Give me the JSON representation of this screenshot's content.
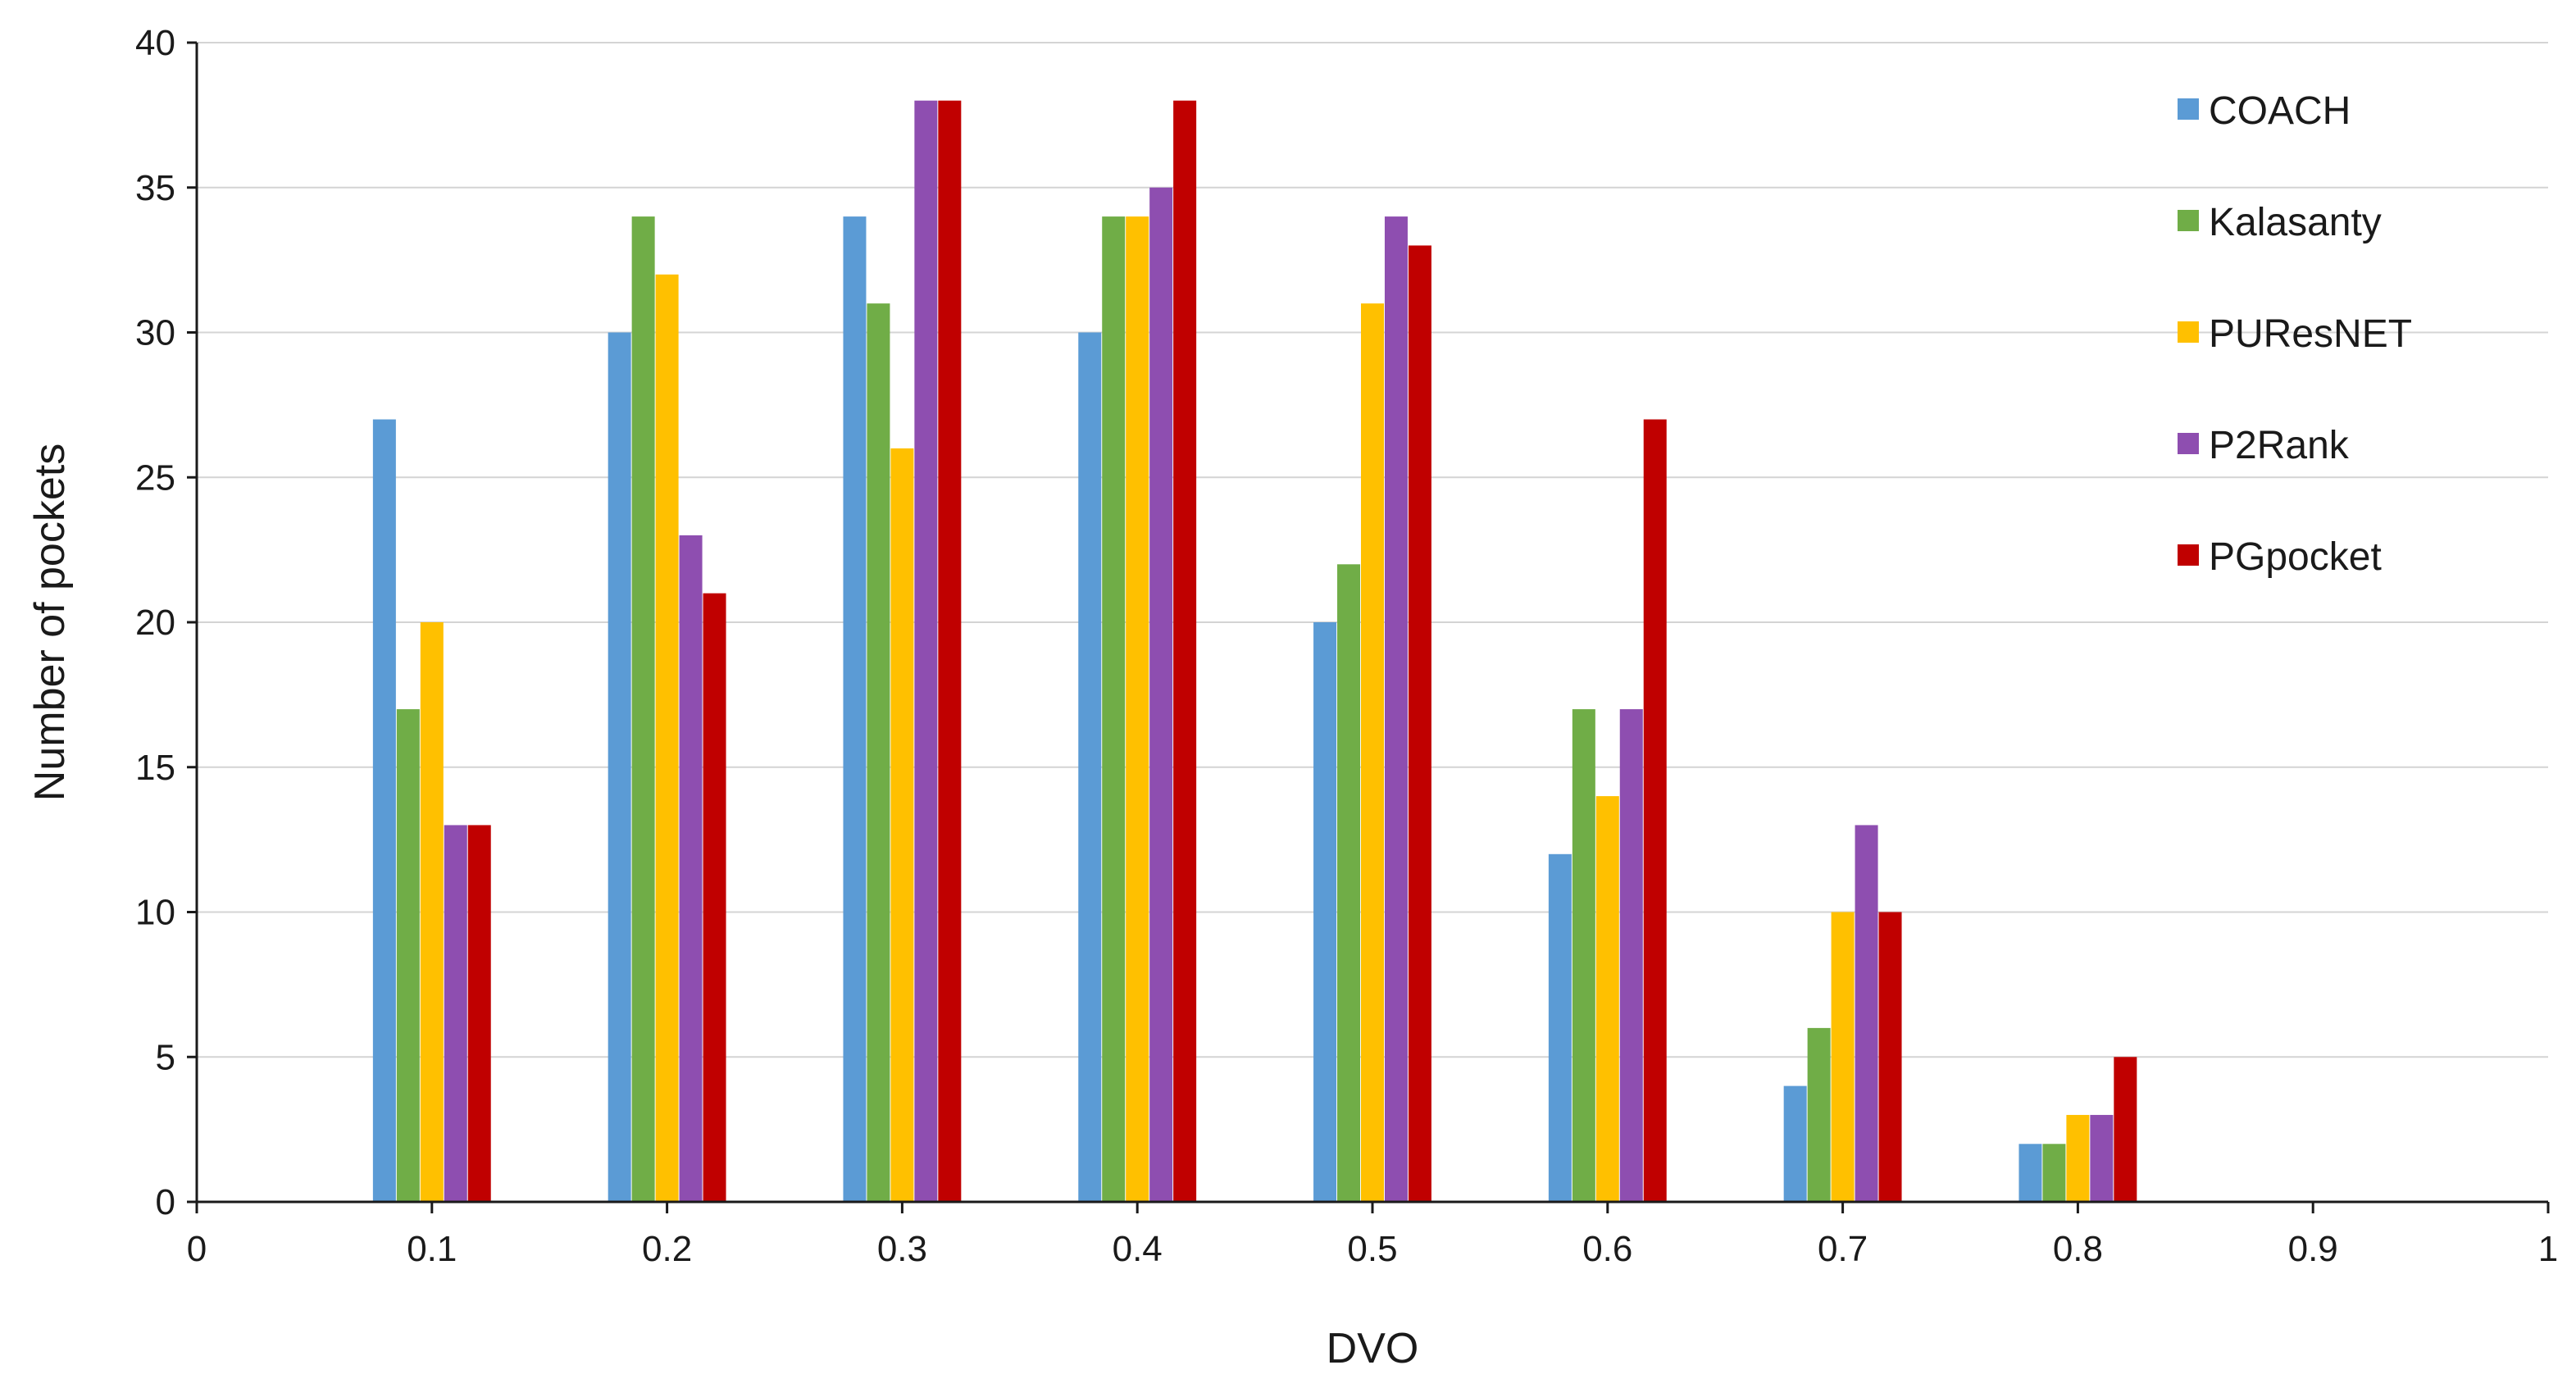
{
  "chart_data": {
    "type": "bar",
    "xlabel": "DVO",
    "ylabel": "Number of pockets",
    "xlim": [
      0,
      1
    ],
    "ylim": [
      0,
      40
    ],
    "x_ticks": [
      "0",
      "0.1",
      "0.2",
      "0.3",
      "0.4",
      "0.5",
      "0.6",
      "0.7",
      "0.8",
      "0.9",
      "1"
    ],
    "y_ticks": [
      "0",
      "5",
      "10",
      "15",
      "20",
      "25",
      "30",
      "35",
      "40"
    ],
    "categories": [
      "0.1",
      "0.2",
      "0.3",
      "0.4",
      "0.5",
      "0.6",
      "0.7",
      "0.8"
    ],
    "grid": "horizontal",
    "legend_position": "top-right",
    "series": [
      {
        "name": "COACH",
        "color": "#5b9bd5",
        "values": [
          27,
          30,
          34,
          30,
          20,
          12,
          4,
          2
        ]
      },
      {
        "name": "Kalasanty",
        "color": "#70ad47",
        "values": [
          17,
          34,
          31,
          34,
          22,
          17,
          6,
          2
        ]
      },
      {
        "name": "PUResNET",
        "color": "#ffc000",
        "values": [
          20,
          32,
          26,
          34,
          31,
          14,
          10,
          3
        ]
      },
      {
        "name": "P2Rank",
        "color": "#8e4eb0",
        "values": [
          13,
          23,
          38,
          35,
          34,
          17,
          13,
          3
        ]
      },
      {
        "name": "PGpocket",
        "color": "#c00000",
        "values": [
          13,
          21,
          38,
          38,
          33,
          27,
          10,
          5
        ]
      }
    ]
  }
}
